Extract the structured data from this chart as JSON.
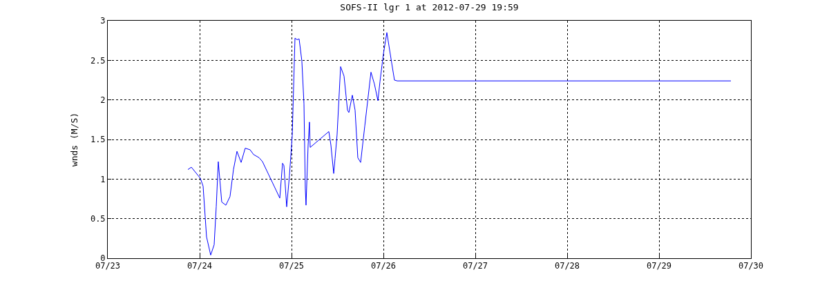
{
  "chart_data": {
    "type": "line",
    "title": "SOFS-II lgr 1 at 2012-07-29 19:59",
    "ylabel": "wnds (M/S)",
    "x": [
      "2012-07-23T20:56",
      "2012-07-23T21:50",
      "2012-07-24T00:11",
      "2012-07-24T00:54",
      "2012-07-24T01:48",
      "2012-07-24T02:53",
      "2012-07-24T03:47",
      "2012-07-24T04:20",
      "2012-07-24T04:52",
      "2012-07-24T05:46",
      "2012-07-24T06:51",
      "2012-07-24T07:56",
      "2012-07-24T08:50",
      "2012-07-24T09:45",
      "2012-07-24T10:50",
      "2012-07-24T11:54",
      "2012-07-24T13:10",
      "2012-07-24T14:05",
      "2012-07-24T15:31",
      "2012-07-24T16:25",
      "2012-07-24T20:56",
      "2012-07-24T21:39",
      "2012-07-24T22:01",
      "2012-07-24T22:44",
      "2012-07-24T23:27",
      "2012-07-25T00:11",
      "2012-07-25T00:54",
      "2012-07-25T01:27",
      "2012-07-25T01:59",
      "2012-07-25T02:42",
      "2012-07-25T03:15",
      "2012-07-25T03:36",
      "2012-07-25T03:47",
      "2012-07-25T04:20",
      "2012-07-25T04:41",
      "2012-07-25T04:52",
      "2012-07-25T09:45",
      "2012-07-25T10:17",
      "2012-07-25T11:01",
      "2012-07-25T11:22",
      "2012-07-25T11:54",
      "2012-07-25T12:49",
      "2012-07-25T13:43",
      "2012-07-25T14:37",
      "2012-07-25T14:59",
      "2012-07-25T15:53",
      "2012-07-25T16:36",
      "2012-07-25T17:19",
      "2012-07-25T18:03",
      "2012-07-25T19:08",
      "2012-07-25T20:45",
      "2012-07-25T21:39",
      "2012-07-25T22:34",
      "2012-07-25T23:06",
      "2012-07-26T00:00",
      "2012-07-26T00:54",
      "2012-07-26T01:59",
      "2012-07-26T02:53",
      "2012-07-26T03:37",
      "2012-07-29T18:46"
    ],
    "series": [
      {
        "color": "#0000ff",
        "values": [
          1.12,
          1.15,
          1.01,
          0.91,
          0.27,
          0.04,
          0.17,
          0.65,
          1.22,
          0.71,
          0.67,
          0.78,
          1.12,
          1.35,
          1.21,
          1.39,
          1.37,
          1.31,
          1.27,
          1.22,
          0.76,
          1.2,
          1.17,
          0.65,
          1.04,
          1.55,
          2.78,
          2.76,
          2.77,
          2.49,
          1.95,
          0.88,
          0.67,
          1.43,
          1.72,
          1.4,
          1.6,
          1.43,
          1.07,
          1.26,
          1.56,
          2.42,
          2.3,
          1.87,
          1.84,
          2.06,
          1.87,
          1.27,
          1.21,
          1.67,
          2.35,
          2.2,
          1.99,
          2.23,
          2.58,
          2.85,
          2.52,
          2.25,
          2.24,
          2.24
        ]
      }
    ],
    "xlim": [
      "2012-07-23",
      "2012-07-30"
    ],
    "xticks": [
      {
        "value": "2012-07-23",
        "label": "07/23"
      },
      {
        "value": "2012-07-24",
        "label": "07/24"
      },
      {
        "value": "2012-07-25",
        "label": "07/25"
      },
      {
        "value": "2012-07-26",
        "label": "07/26"
      },
      {
        "value": "2012-07-27",
        "label": "07/27"
      },
      {
        "value": "2012-07-28",
        "label": "07/28"
      },
      {
        "value": "2012-07-29",
        "label": "07/29"
      },
      {
        "value": "2012-07-30",
        "label": "07/30"
      }
    ],
    "ylim": [
      0,
      3
    ],
    "yticks": [
      0,
      0.5,
      1,
      1.5,
      2,
      2.5,
      3
    ],
    "grid": true,
    "line_style": "solid",
    "marker": "none"
  }
}
